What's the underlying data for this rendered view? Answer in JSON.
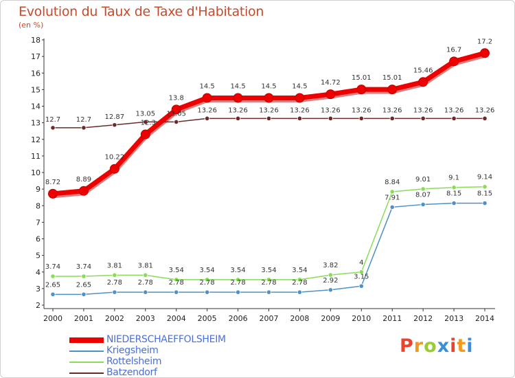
{
  "chart_data": {
    "type": "line",
    "title": "Evolution du Taux de Taxe d'Habitation",
    "unit_label": "(en %)",
    "x": [
      "2000",
      "2001",
      "2002",
      "2003",
      "2004",
      "2005",
      "2006",
      "2007",
      "2008",
      "2009",
      "2010",
      "2011",
      "2012",
      "2013",
      "2014"
    ],
    "y_ticks": [
      "2",
      "3",
      "4",
      "5",
      "6",
      "7",
      "8",
      "9",
      "10",
      "11",
      "12",
      "13",
      "14",
      "15",
      "16",
      "17",
      "18"
    ],
    "ylim": [
      2,
      18
    ],
    "grid": false,
    "series": [
      {
        "name": "NIEDERSCHAEFFOLSHEIM",
        "color": "#ee0000",
        "values": [
          8.72,
          8.89,
          10.22,
          12.3,
          13.8,
          14.5,
          14.5,
          14.5,
          14.5,
          14.72,
          15.01,
          15.01,
          15.46,
          16.7,
          17.2
        ],
        "labels": [
          "8.72",
          "8.89",
          "10.22",
          "",
          "13.8",
          "14.5",
          "14.5",
          "14.5",
          "14.5",
          "14.72",
          "15.01",
          "15.01",
          "15.46",
          "16.7",
          "17.2"
        ]
      },
      {
        "name": "Kriegsheim",
        "color": "#4f90c6",
        "values": [
          2.65,
          2.65,
          2.78,
          2.78,
          2.78,
          2.78,
          2.78,
          2.78,
          2.78,
          2.92,
          3.15,
          7.91,
          8.07,
          8.15,
          8.15
        ],
        "labels": [
          "2.65",
          "2.65",
          "2.78",
          "2.78",
          "2.78",
          "2.78",
          "2.78",
          "2.78",
          "2.78",
          "2.92",
          "3.15",
          "7.91",
          "8.07",
          "8.15",
          "8.15"
        ]
      },
      {
        "name": "Rottelsheim",
        "color": "#88dd55",
        "values": [
          3.74,
          3.74,
          3.81,
          3.81,
          3.54,
          3.54,
          3.54,
          3.54,
          3.54,
          3.82,
          4,
          8.84,
          9.01,
          9.1,
          9.14
        ],
        "labels": [
          "3.74",
          "3.74",
          "3.81",
          "3.81",
          "3.54",
          "3.54",
          "3.54",
          "3.54",
          "3.54",
          "3.82",
          "4",
          "8.84",
          "9.01",
          "9.1",
          "9.14"
        ]
      },
      {
        "name": "Batzendorf",
        "color": "#6a2a2a",
        "values": [
          12.7,
          12.7,
          12.87,
          13.05,
          13.05,
          13.26,
          13.26,
          13.26,
          13.26,
          13.26,
          13.26,
          13.26,
          13.26,
          13.26,
          13.26
        ],
        "labels": [
          "12.7",
          "12.7",
          "12.87",
          "13.05",
          "13.05",
          "13.26",
          "13.26",
          "13.26",
          "13.26",
          "13.26",
          "13.26",
          "13.26",
          "13.26",
          "13.26",
          "13.26"
        ],
        "extra_label": "12.3"
      }
    ]
  },
  "brand": {
    "text": "Proxiti",
    "colors": [
      "#e8452c",
      "#f29a1f",
      "#9acd32",
      "#3a8fd6",
      "#e8452c",
      "#f29a1f",
      "#3a8fd6"
    ]
  }
}
